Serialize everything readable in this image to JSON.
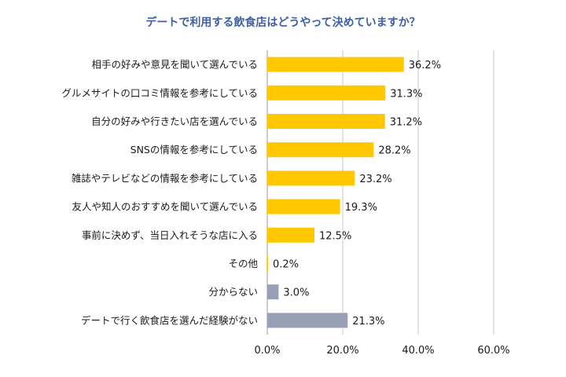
{
  "chart_data": {
    "type": "bar",
    "orientation": "horizontal",
    "title": "デートで利用する飲食店はどうやって決めていますか？",
    "categories": [
      "相手の好みや意見を聞いて選んでいる",
      "グルメサイトの口コミ情報を参考にしている",
      "自分の好みや行きたい店を選んでいる",
      "SNSの情報を参考にしている",
      "雑誌やテレビなどの情報を参考にしている",
      "友人や知人のおすすめを聞いて選んでいる",
      "事前に決めず、当日入れそうな店に入る",
      "その他",
      "分からない",
      "デートで行く飲食店を選んだ経験がない"
    ],
    "values": [
      36.2,
      31.3,
      31.2,
      28.2,
      23.2,
      19.3,
      12.5,
      0.2,
      3.0,
      21.3
    ],
    "value_labels": [
      "36.2%",
      "31.3%",
      "31.2%",
      "28.2%",
      "23.2%",
      "19.3%",
      "12.5%",
      "0.2%",
      "3.0%",
      "21.3%"
    ],
    "bar_colors": [
      "#ffc800",
      "#ffc800",
      "#ffc800",
      "#ffc800",
      "#ffc800",
      "#ffc800",
      "#ffc800",
      "#ffc800",
      "#97a0b4",
      "#97a0b4"
    ],
    "xlim": [
      0,
      60
    ],
    "xticks": [
      0,
      20,
      40,
      60
    ],
    "xtick_labels": [
      "0.0%",
      "20.0%",
      "40.0%",
      "60.0%"
    ],
    "grid": "vertical",
    "legend": "none"
  }
}
